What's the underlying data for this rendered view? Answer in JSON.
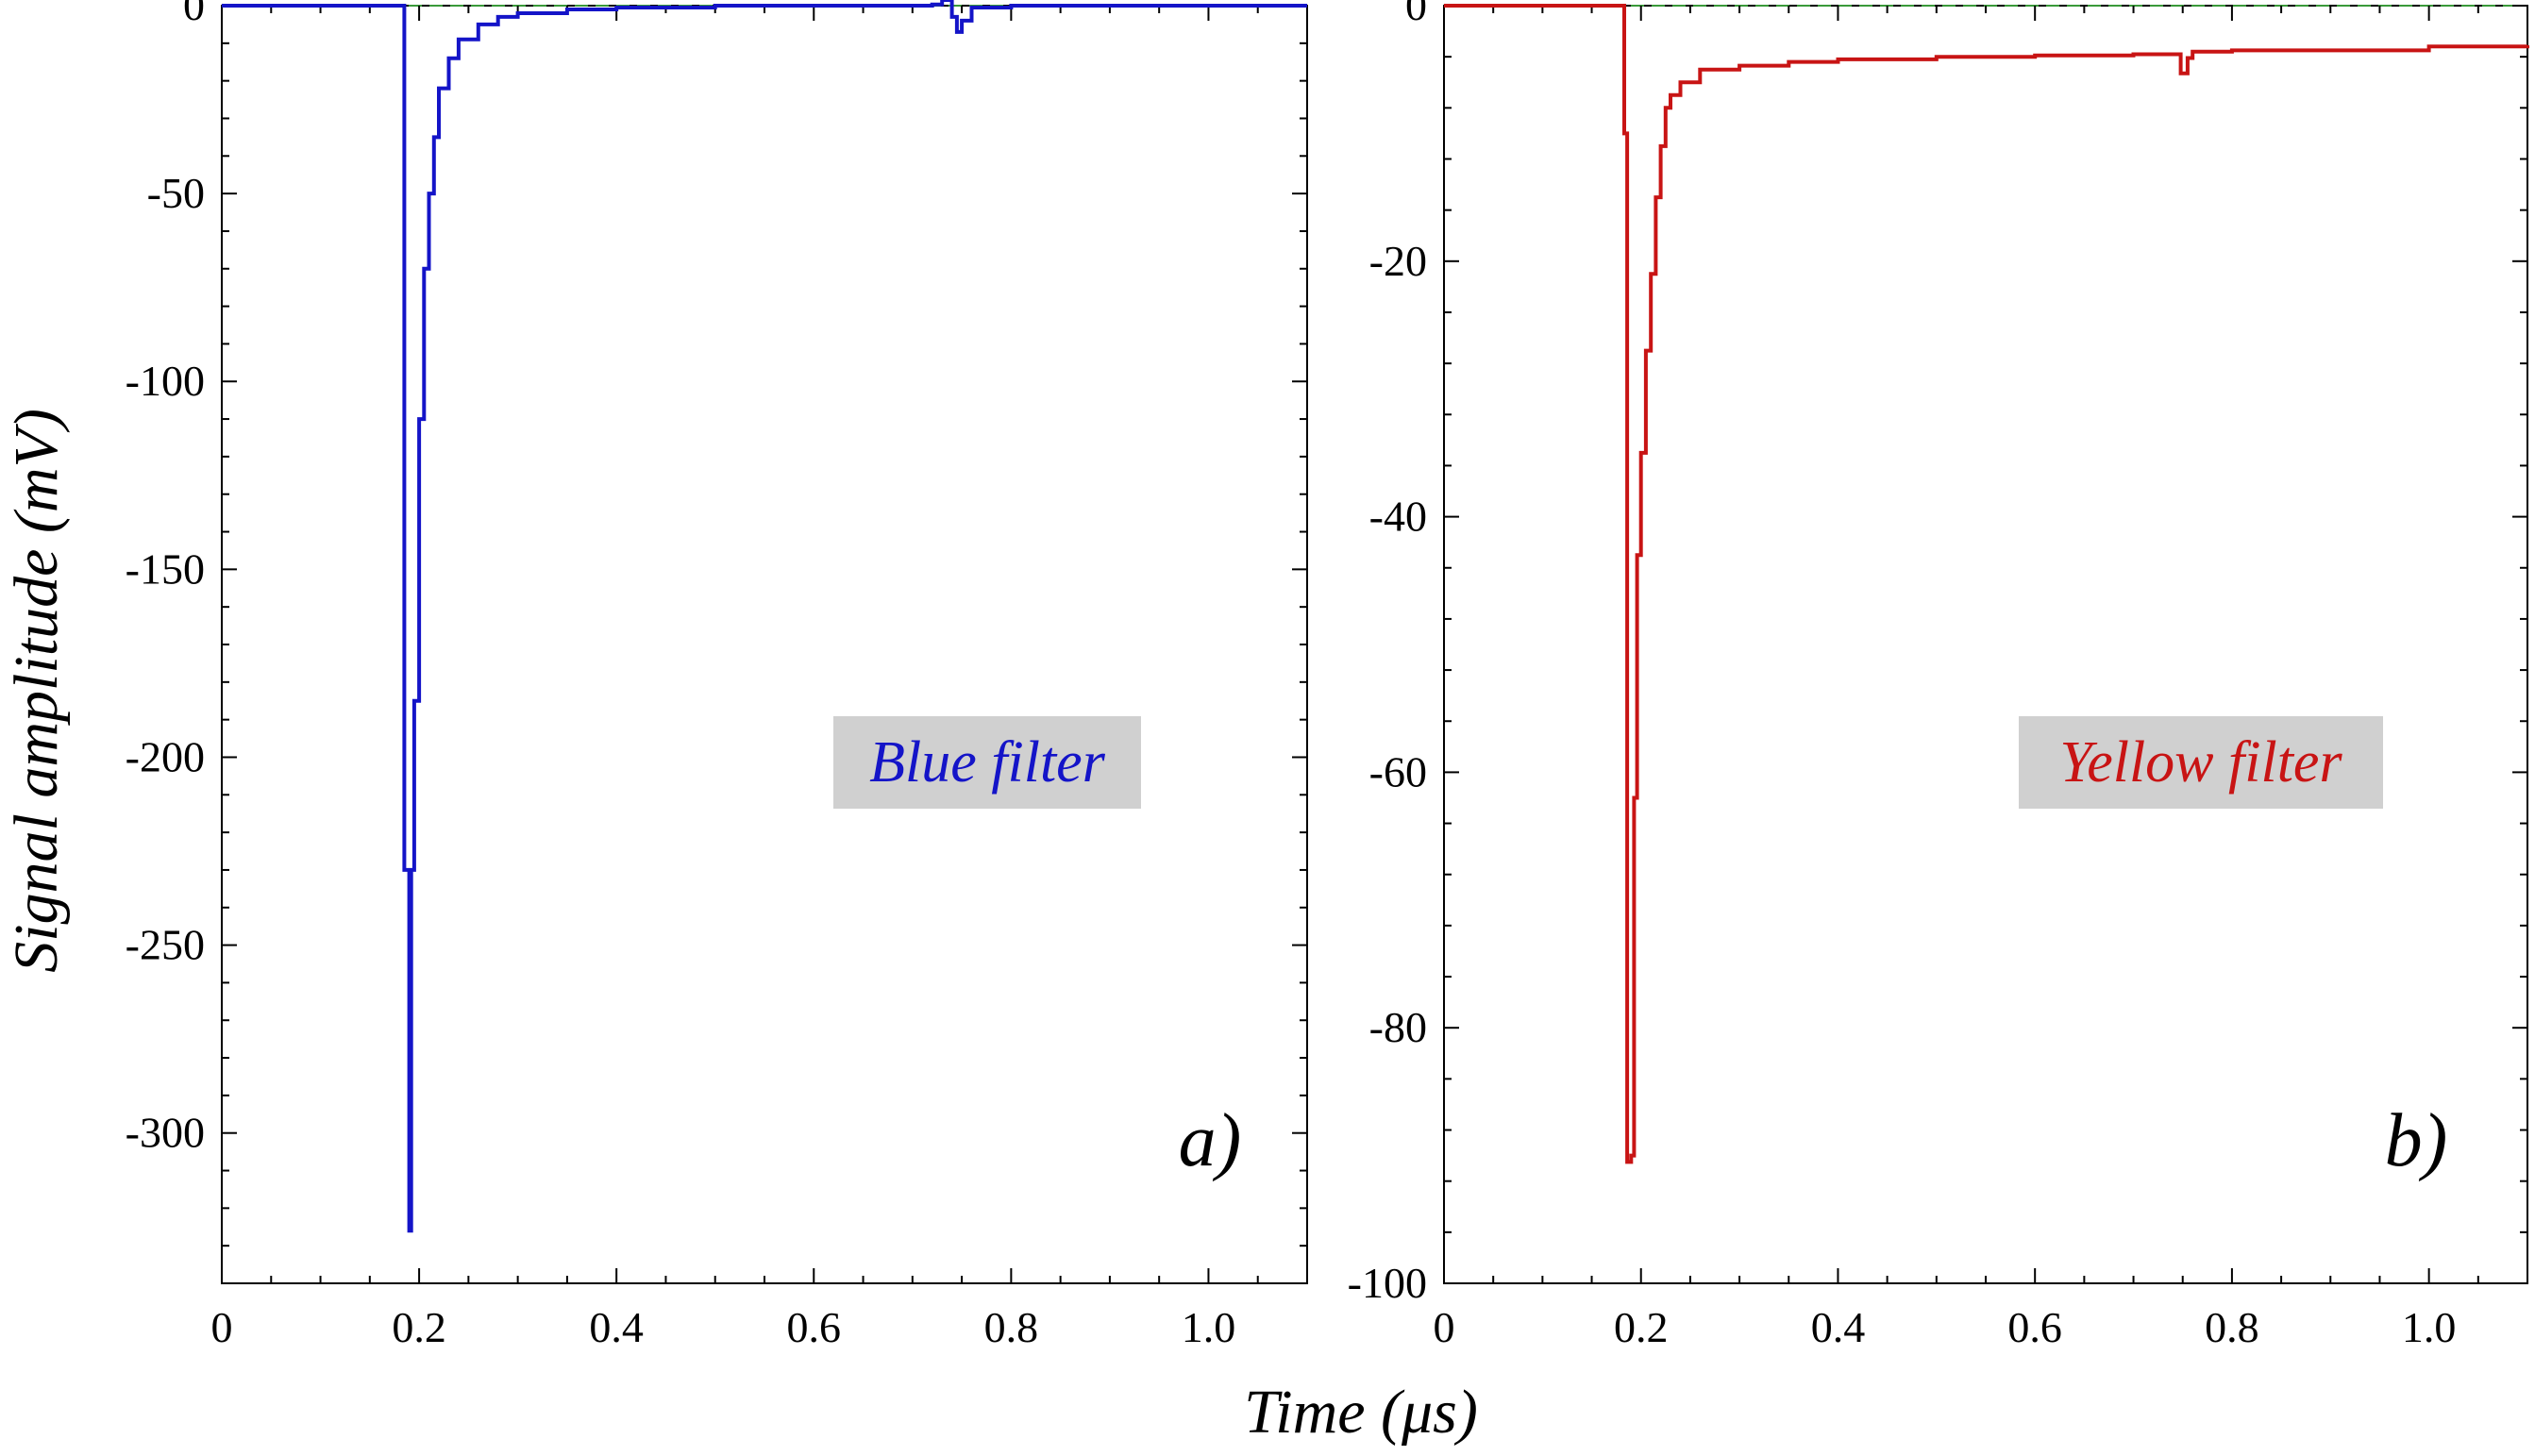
{
  "figure": {
    "ylabel": "Signal amplitude (mV)",
    "xlabel": "Time (μs)"
  },
  "colors": {
    "blue": "#1414c8",
    "red": "#c81414",
    "baseline": "#3a9a3a",
    "label_bg": "#d0d0d0"
  },
  "chart_data": [
    {
      "type": "line",
      "panel": "a)",
      "annotation": "Blue filter",
      "color": "#1414c8",
      "xlim": [
        0,
        1.1
      ],
      "ylim": [
        -340,
        0
      ],
      "x_ticks": [
        0,
        0.2,
        0.4,
        0.6,
        0.8,
        1.0
      ],
      "x_tick_labels": [
        "0",
        "0.2",
        "0.4",
        "0.6",
        "0.8",
        "1.0"
      ],
      "y_ticks": [
        0,
        -50,
        -100,
        -150,
        -200,
        -250,
        -300
      ],
      "y_tick_labels": [
        "0",
        "-50",
        "-100",
        "-150",
        "-200",
        "-250",
        "-300"
      ],
      "baseline": 0,
      "series": [
        {
          "x": [
            0,
            0.18,
            0.185,
            0.19,
            0.192,
            0.195,
            0.2,
            0.205,
            0.21,
            0.215,
            0.22,
            0.23,
            0.24,
            0.26,
            0.28,
            0.3,
            0.35,
            0.4,
            0.5,
            0.6,
            0.7,
            0.72,
            0.73,
            0.74,
            0.745,
            0.75,
            0.76,
            0.8,
            1.1
          ],
          "y": [
            0,
            0,
            -230,
            -326,
            -230,
            -185,
            -110,
            -70,
            -50,
            -35,
            -22,
            -14,
            -9,
            -5,
            -3,
            -2,
            -1,
            -0.5,
            0,
            0,
            0,
            0.3,
            1.5,
            -3,
            -7,
            -4,
            -0.5,
            0,
            0
          ]
        }
      ]
    },
    {
      "type": "line",
      "panel": "b)",
      "annotation": "Yellow filter",
      "color": "#c81414",
      "xlim": [
        0,
        1.1
      ],
      "ylim": [
        -100,
        0
      ],
      "x_ticks": [
        0,
        0.2,
        0.4,
        0.6,
        0.8,
        1.0
      ],
      "x_tick_labels": [
        "0",
        "0.2",
        "0.4",
        "0.6",
        "0.8",
        "1.0"
      ],
      "y_ticks": [
        0,
        -20,
        -40,
        -60,
        -80,
        -100
      ],
      "y_tick_labels": [
        "0",
        "-20",
        "-40",
        "-60",
        "-80",
        "-100"
      ],
      "baseline": 0,
      "series": [
        {
          "x": [
            0,
            0.18,
            0.183,
            0.186,
            0.19,
            0.193,
            0.196,
            0.2,
            0.205,
            0.21,
            0.215,
            0.22,
            0.225,
            0.23,
            0.24,
            0.26,
            0.3,
            0.35,
            0.4,
            0.5,
            0.6,
            0.7,
            0.74,
            0.748,
            0.755,
            0.76,
            0.8,
            1.0,
            1.1
          ],
          "y": [
            0,
            0,
            -10,
            -90.5,
            -90,
            -62,
            -43,
            -35,
            -27,
            -21,
            -15,
            -11,
            -8,
            -7,
            -6,
            -5,
            -4.7,
            -4.4,
            -4.2,
            -4,
            -3.9,
            -3.8,
            -3.8,
            -5.3,
            -4.1,
            -3.6,
            -3.5,
            -3.2,
            -3.1
          ]
        }
      ]
    }
  ]
}
